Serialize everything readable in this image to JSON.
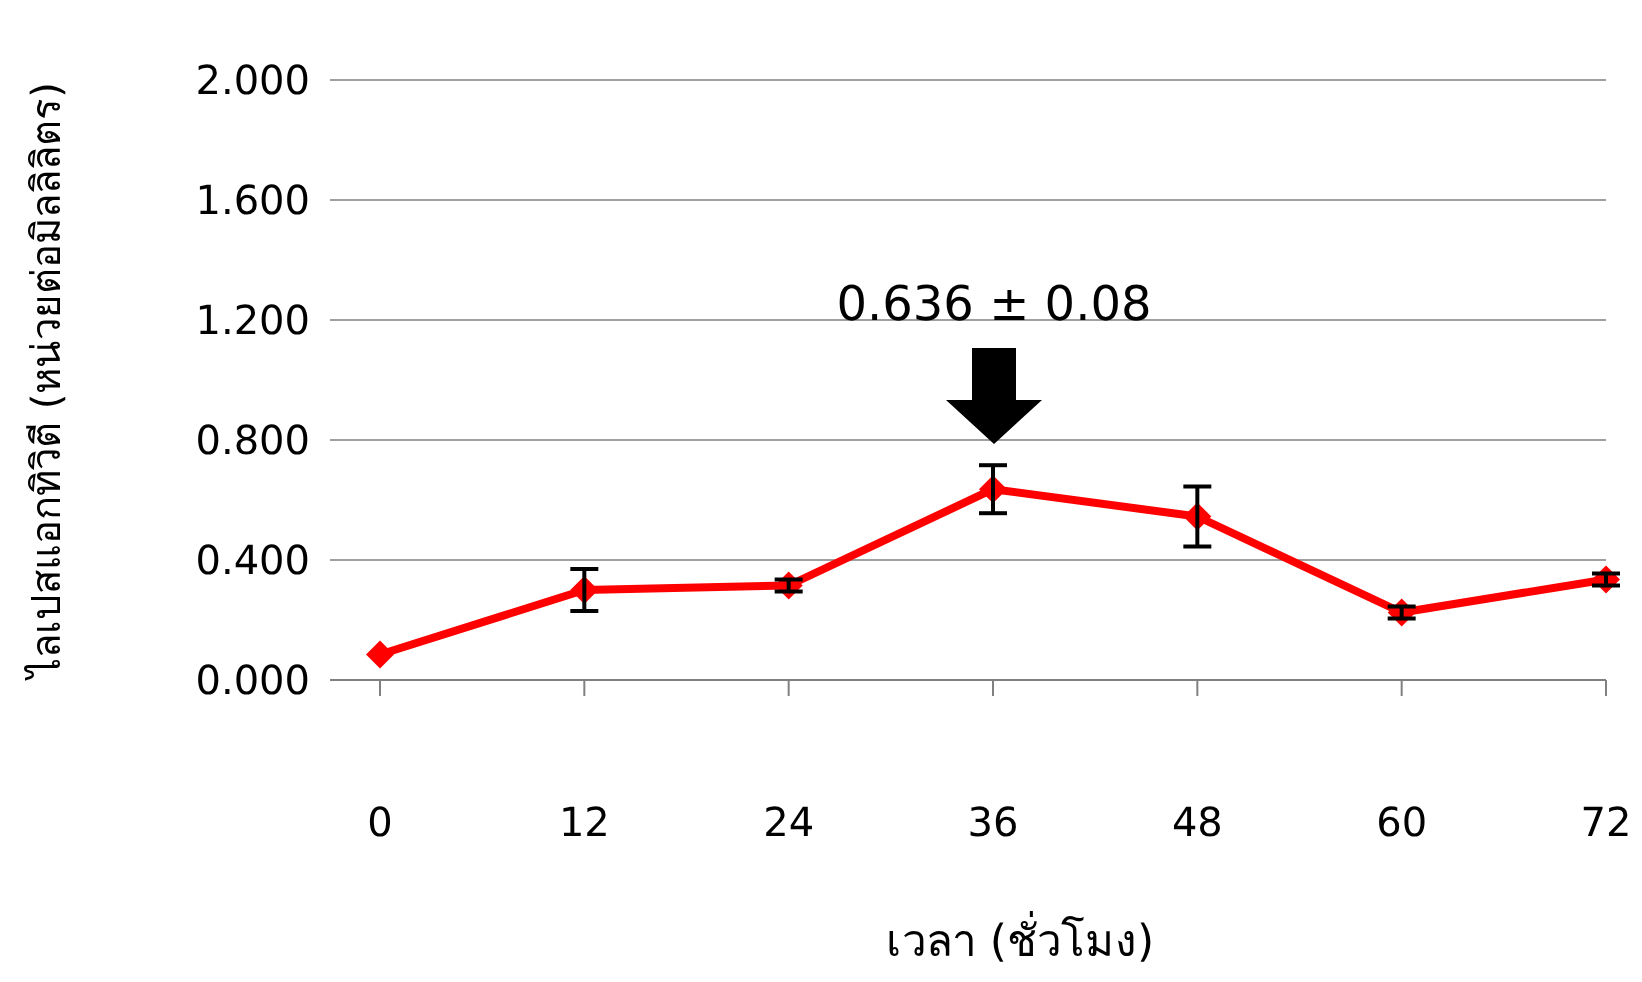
{
  "chart_data": {
    "type": "line",
    "xlabel": "เวลา (ชั่วโมง)",
    "ylabel": "ไลเปสแอกทิวิตี (หน่วยต่อมิลลิลิตร)",
    "x": [
      0,
      12,
      24,
      36,
      48,
      60,
      72
    ],
    "series": [
      {
        "color": "#ff0000",
        "values": [
          0.085,
          0.3,
          0.315,
          0.636,
          0.545,
          0.225,
          0.335
        ],
        "errors": [
          null,
          0.07,
          0.02,
          0.08,
          0.1,
          0.02,
          0.02
        ]
      }
    ],
    "xlim": [
      0,
      72
    ],
    "xticks": [
      0,
      12,
      24,
      36,
      48,
      60,
      72
    ],
    "ylim": [
      0,
      2
    ],
    "yticks": [
      {
        "value": 0,
        "label": "0.000"
      },
      {
        "value": 0.4,
        "label": "0.400"
      },
      {
        "value": 0.8,
        "label": "0.800"
      },
      {
        "value": 1.2,
        "label": "1.200"
      },
      {
        "value": 1.6,
        "label": "1.600"
      },
      {
        "value": 2,
        "label": "2.000"
      }
    ],
    "grid": "y",
    "marker": "diamond",
    "line_style": "solid",
    "annotations": [
      "0.636 ± 0.08"
    ]
  }
}
